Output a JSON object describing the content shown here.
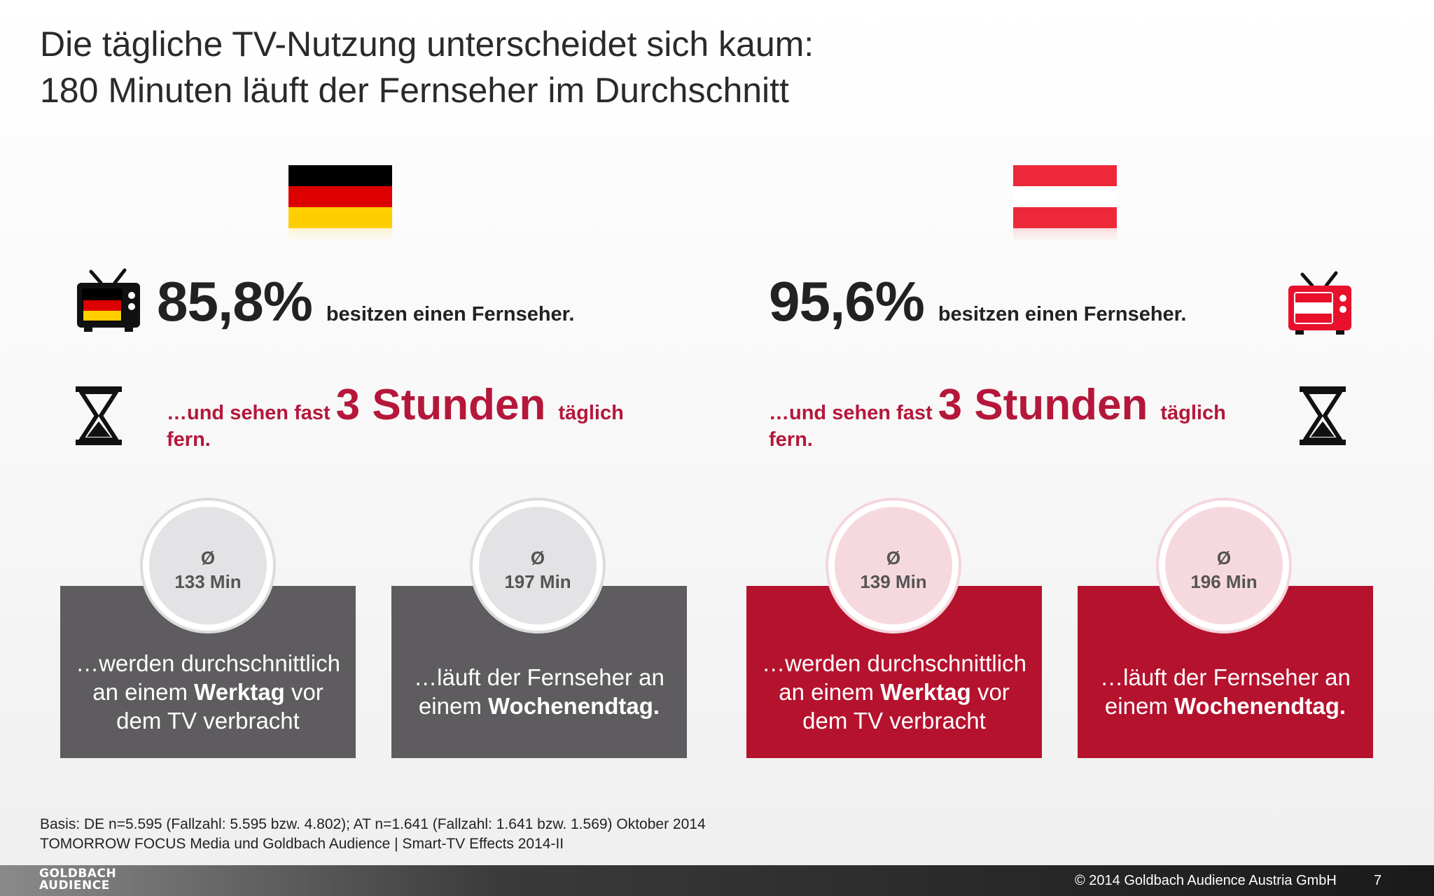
{
  "title": {
    "line1": "Die tägliche TV-Nutzung unterscheidet sich kaum:",
    "line2": "180 Minuten läuft der Fernseher im Durchschnitt"
  },
  "colors": {
    "accent_red": "#b5122e",
    "card_gray": "#5e5c5f",
    "de_black": "#000000",
    "de_red": "#dd0000",
    "de_gold": "#ffce00",
    "at_red": "#ed2939"
  },
  "germany": {
    "ownership_pct": "85,8%",
    "ownership_text": "besitzen einen Fernseher.",
    "watch_pre": "…und sehen fast",
    "watch_big": "3 Stunden",
    "watch_post": "täglich",
    "watch_line2": "fern.",
    "weekday": {
      "symbol": "Ø",
      "value": "133 Min",
      "text_1": "…werden durchschnittlich an einem",
      "text_bold": "Werktag",
      "text_2": "vor dem TV verbracht"
    },
    "weekend": {
      "symbol": "Ø",
      "value": "197 Min",
      "text_1": "…läuft der Fernseher an einem",
      "text_bold": "Wochenendtag."
    }
  },
  "austria": {
    "ownership_pct": "95,6%",
    "ownership_text": "besitzen einen Fernseher.",
    "watch_pre": "…und sehen fast",
    "watch_big": "3 Stunden",
    "watch_post": "täglich",
    "watch_line2": "fern.",
    "weekday": {
      "symbol": "Ø",
      "value": "139 Min",
      "text_1": "…werden durchschnittlich an einem",
      "text_bold": "Werktag",
      "text_2": "vor dem TV verbracht"
    },
    "weekend": {
      "symbol": "Ø",
      "value": "196 Min",
      "text_1": "…läuft der Fernseher an einem",
      "text_bold": "Wochenendtag."
    }
  },
  "icons": {
    "tv": "tv-icon",
    "hourglass": "hourglass-icon",
    "flag_de": "germany-flag-icon",
    "flag_at": "austria-flag-icon"
  },
  "footnote": {
    "line1": "Basis: DE n=5.595 (Fallzahl: 5.595 bzw. 4.802); AT n=1.641 (Fallzahl: 1.641 bzw. 1.569) Oktober 2014",
    "line2": "TOMORROW FOCUS Media und Goldbach Audience | Smart-TV Effects 2014-II"
  },
  "footer": {
    "logo_line1": "GOLDBACH",
    "logo_line2": "AUDIENCE",
    "copyright": "© 2014 Goldbach Audience Austria GmbH",
    "page_number": "7"
  }
}
